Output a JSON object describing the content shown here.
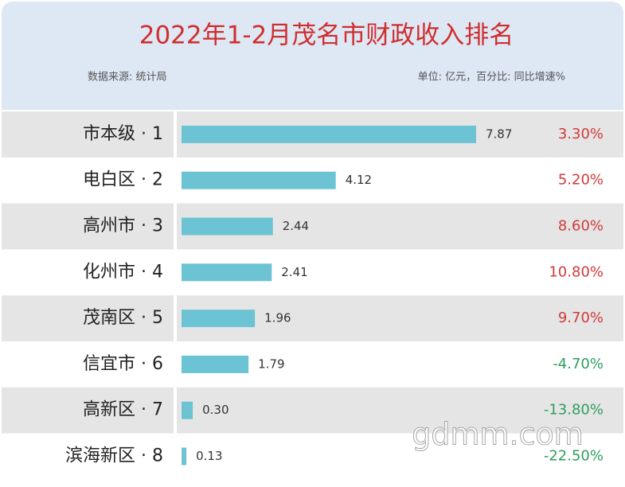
{
  "chart_data": {
    "type": "bar",
    "title": "2022年1-2月茂名市财政收入排名",
    "source": "数据来源: 统计局",
    "unit_note": "单位: 亿元，百分比: 同比增速%",
    "watermark": "gdmm.com",
    "categories": [
      "市本级 · 1",
      "电白区 · 2",
      "高州市 · 3",
      "化州市 · 4",
      "茂南区 · 5",
      "信宜市 · 6",
      "高新区 · 7",
      "滨海新区 · 8"
    ],
    "values": [
      7.87,
      4.12,
      2.44,
      2.41,
      1.96,
      1.79,
      0.3,
      0.13
    ],
    "value_labels": [
      "7.87",
      "4.12",
      "2.44",
      "2.41",
      "1.96",
      "1.79",
      "0.30",
      "0.13"
    ],
    "color": "#6cc3d3",
    "growth": {
      "values": [
        3.3,
        5.2,
        8.6,
        10.8,
        9.7,
        -4.7,
        -13.8,
        -22.5
      ],
      "value_labels": [
        "3.30%",
        "5.20%",
        "8.60%",
        "10.80%",
        "9.70%",
        "-4.70%",
        "-13.80%",
        "-22.50%"
      ],
      "positive_color": "#d23a3a",
      "negative_color": "#2e9e5e"
    }
  }
}
